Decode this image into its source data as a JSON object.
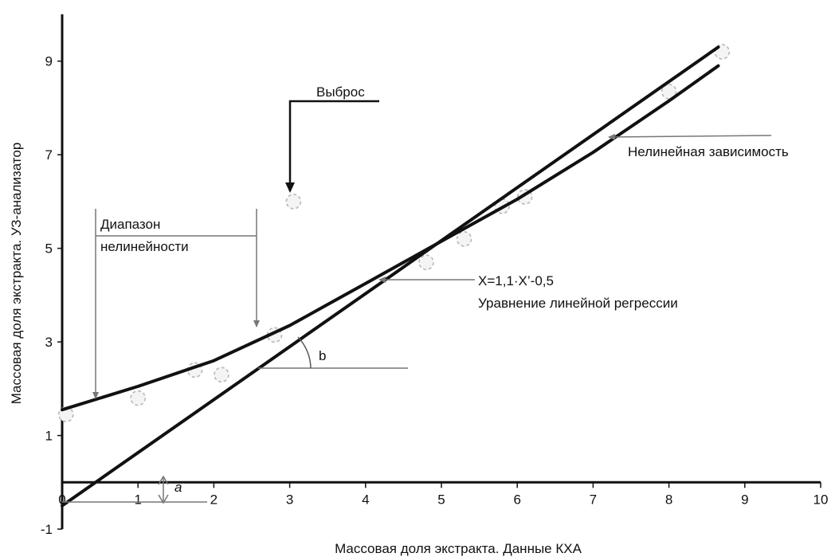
{
  "chart_data": {
    "type": "scatter",
    "xlabel": "Массовая доля экстракта. Данные КХА",
    "ylabel": "Массовая доля экстракта. УЗ-анализатор",
    "xlim": [
      0,
      10
    ],
    "ylim": [
      -1,
      10
    ],
    "x_ticks": [
      "0",
      "1",
      "2",
      "3",
      "4",
      "5",
      "6",
      "7",
      "8",
      "9",
      "10"
    ],
    "y_ticks": [
      "-1",
      "1",
      "3",
      "5",
      "7",
      "9"
    ],
    "series": [
      {
        "points": [
          {
            "x": 0.05,
            "y": 1.45
          },
          {
            "x": 1.0,
            "y": 1.8
          },
          {
            "x": 1.75,
            "y": 2.4
          },
          {
            "x": 2.1,
            "y": 2.3
          },
          {
            "x": 2.8,
            "y": 3.15
          },
          {
            "x": 3.05,
            "y": 6.0
          },
          {
            "x": 4.8,
            "y": 4.7
          },
          {
            "x": 5.3,
            "y": 5.2
          },
          {
            "x": 5.8,
            "y": 5.9
          },
          {
            "x": 6.1,
            "y": 6.1
          },
          {
            "x": 8.0,
            "y": 8.35
          },
          {
            "x": 8.7,
            "y": 9.2
          }
        ]
      }
    ],
    "lines": [
      {
        "kind": "linear",
        "x": [
          0,
          8.65
        ],
        "y": [
          -0.5,
          9.3
        ]
      },
      {
        "kind": "nonlinear",
        "x": [
          0,
          1,
          2,
          3,
          4,
          5,
          6,
          7,
          8,
          8.65
        ],
        "y": [
          1.55,
          2.05,
          2.6,
          3.35,
          4.25,
          5.15,
          6.05,
          7.05,
          8.15,
          8.9
        ]
      }
    ],
    "annotations": {
      "outlier": "Выброс",
      "nonlinearity_range": [
        "Диапазон",
        "нелинейности"
      ],
      "nonlinear_dependence": "Нелинейная зависимость",
      "regression_equation": "X=1,1·X’-0,5",
      "regression_label": "Уравнение линейной регрессии",
      "angle": "b",
      "intercept": "a"
    },
    "grid": false
  }
}
